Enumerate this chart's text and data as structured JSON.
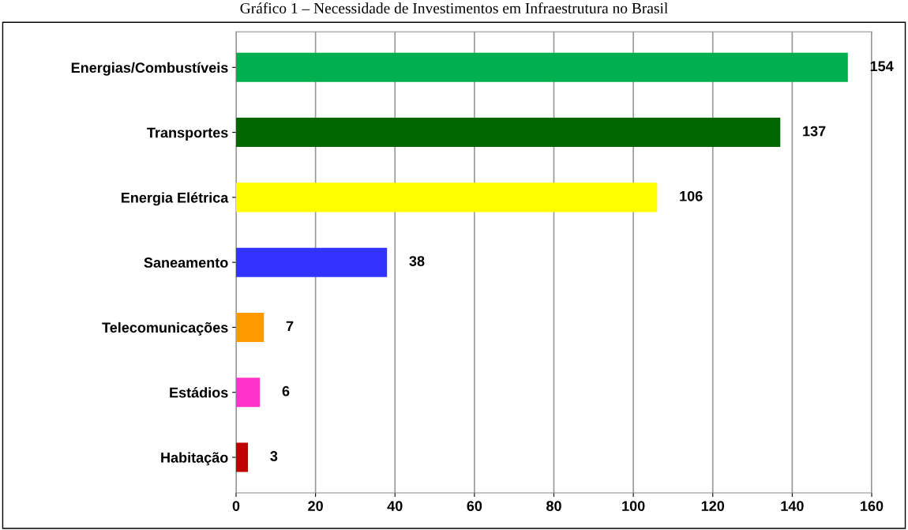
{
  "chart_data": {
    "type": "bar",
    "orientation": "horizontal",
    "title": "Gráfico 1 – Necessidade de Investimentos em Infraestrutura no Brasil",
    "categories": [
      "Energias/Combustíveis",
      "Transportes",
      "Energia Elétrica",
      "Saneamento",
      "Telecomunicações",
      "Estádios",
      "Habitação"
    ],
    "values": [
      154,
      137,
      106,
      38,
      7,
      6,
      3
    ],
    "colors": [
      "#00b050",
      "#006600",
      "#ffff00",
      "#3333ff",
      "#ff9900",
      "#ff33cc",
      "#c00000"
    ],
    "xlim": [
      0,
      160
    ],
    "xticks": [
      0,
      20,
      40,
      60,
      80,
      100,
      120,
      140,
      160
    ],
    "grid": "x",
    "data_labels": true,
    "legend": false
  }
}
